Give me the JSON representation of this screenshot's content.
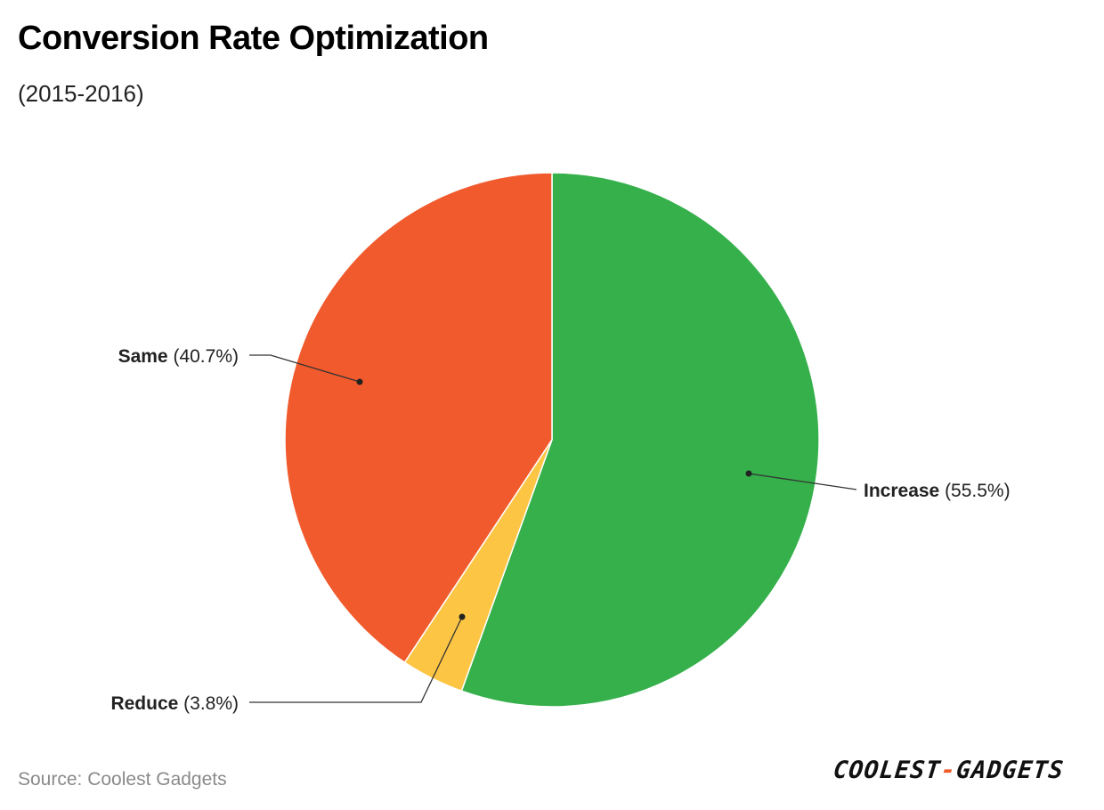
{
  "header": {
    "title": "Conversion Rate Optimization",
    "subtitle": "(2015-2016)"
  },
  "footer": {
    "source": "Source: Coolest Gadgets",
    "brand_left": "COOLEST",
    "brand_dash": "-",
    "brand_right": "GADGETS"
  },
  "chart_data": {
    "type": "pie",
    "title": "Conversion Rate Optimization",
    "subtitle": "(2015-2016)",
    "start": "12 o'clock",
    "direction": "clockwise",
    "slices": [
      {
        "label": "Increase",
        "value": 55.5,
        "display": "(55.5%)",
        "color": "#35b04b",
        "side": "right"
      },
      {
        "label": "Reduce",
        "value": 3.8,
        "display": "(3.8%)",
        "color": "#fdc544",
        "side": "left"
      },
      {
        "label": "Same",
        "value": 40.7,
        "display": "(40.7%)",
        "color": "#f15a2c",
        "side": "left"
      }
    ]
  }
}
